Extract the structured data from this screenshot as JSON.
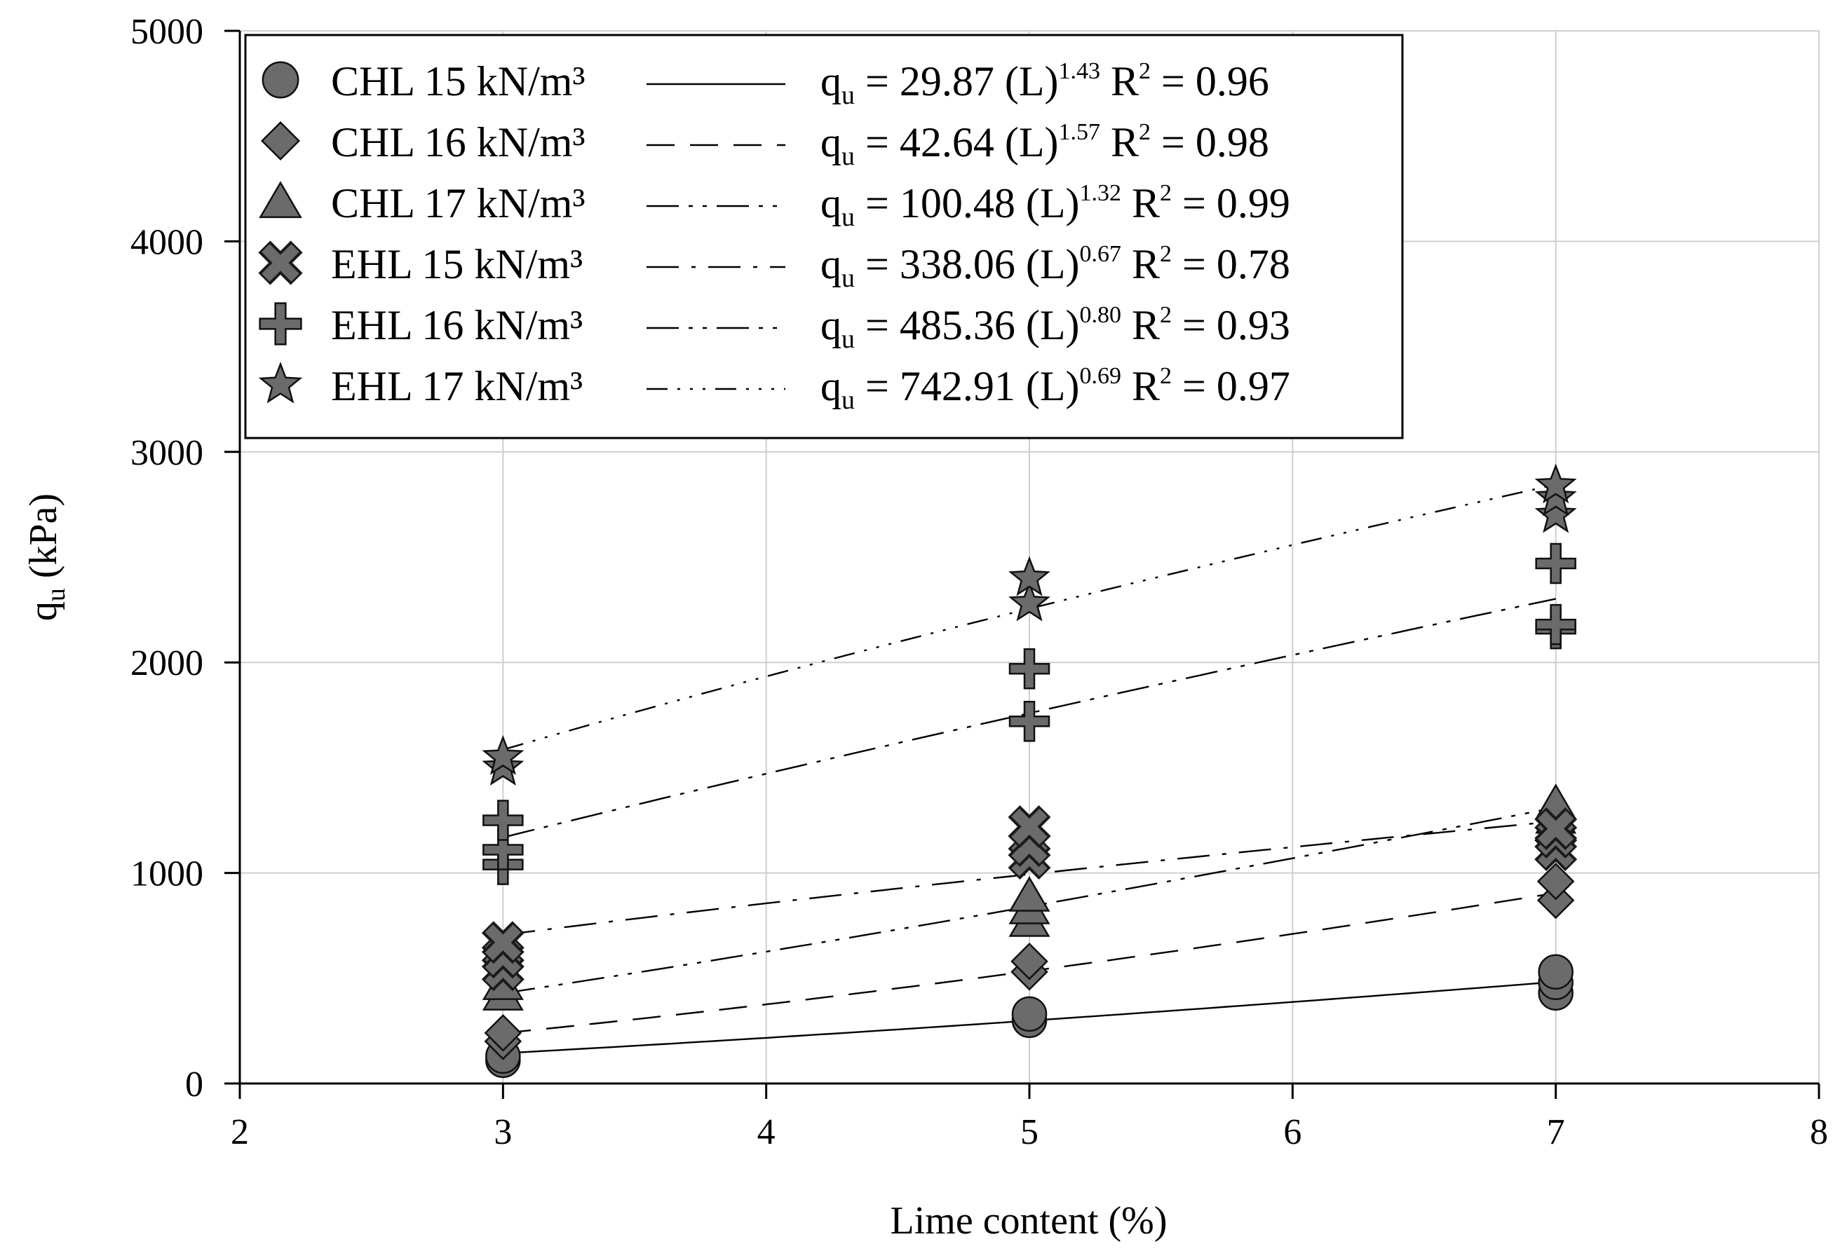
{
  "chart_data": {
    "type": "scatter",
    "xlabel": "Lime content (%)",
    "ylabel": "q",
    "ylabel_sub": "u",
    "ylabel_unit": "(kPa)",
    "xlim": [
      2,
      8
    ],
    "ylim": [
      0,
      5000
    ],
    "x_ticks": [
      2,
      3,
      4,
      5,
      6,
      7,
      8
    ],
    "y_ticks": [
      0,
      1000,
      2000,
      3000,
      4000,
      5000
    ],
    "x_tick_labels": [
      "2",
      "3",
      "4",
      "5",
      "6",
      "7",
      "8"
    ],
    "y_tick_labels": [
      "0",
      "1000",
      "2000",
      "3000",
      "4000",
      "5000"
    ],
    "grid": true,
    "legend_position": "top-left",
    "marker_color": "#6b6b6b",
    "series": [
      {
        "name": "CHL 15 kN/m³",
        "marker": "circle",
        "line_style": "solid",
        "fit": {
          "coef": 29.87,
          "exp": 1.43,
          "r2": "0.96",
          "coef_text": "29.87",
          "exp_text": "1.43"
        },
        "points": [
          [
            3,
            110
          ],
          [
            3,
            130
          ],
          [
            5,
            300
          ],
          [
            5,
            330
          ],
          [
            7,
            430
          ],
          [
            7,
            480
          ],
          [
            7,
            530
          ]
        ]
      },
      {
        "name": "CHL 16 kN/m³",
        "marker": "diamond",
        "line_style": "dashed",
        "fit": {
          "coef": 42.64,
          "exp": 1.57,
          "r2": "0.98",
          "coef_text": "42.64",
          "exp_text": "1.57"
        },
        "points": [
          [
            3,
            200
          ],
          [
            3,
            240
          ],
          [
            5,
            530
          ],
          [
            5,
            580
          ],
          [
            7,
            870
          ],
          [
            7,
            960
          ]
        ]
      },
      {
        "name": "CHL 17 kN/m³",
        "marker": "triangle",
        "line_style": "dash-dot-dot-long",
        "fit": {
          "coef": 100.48,
          "exp": 1.32,
          "r2": "0.99",
          "coef_text": "100.48",
          "exp_text": "1.32"
        },
        "points": [
          [
            3,
            420
          ],
          [
            3,
            470
          ],
          [
            5,
            770
          ],
          [
            5,
            830
          ],
          [
            5,
            890
          ],
          [
            7,
            1260
          ],
          [
            7,
            1330
          ]
        ]
      },
      {
        "name": "EHL 15 kN/m³",
        "marker": "cross-x",
        "line_style": "dash-dot",
        "fit": {
          "coef": 338.06,
          "exp": 0.67,
          "r2": "0.78",
          "coef_text": "338.06",
          "exp_text": "0.67"
        },
        "points": [
          [
            3,
            540
          ],
          [
            3,
            600
          ],
          [
            3,
            670
          ],
          [
            5,
            1070
          ],
          [
            5,
            1130
          ],
          [
            5,
            1220
          ],
          [
            7,
            1110
          ],
          [
            7,
            1170
          ],
          [
            7,
            1210
          ]
        ]
      },
      {
        "name": "EHL 16 kN/m³",
        "marker": "plus",
        "line_style": "dash-dot-dot",
        "fit": {
          "coef": 485.36,
          "exp": 0.8,
          "r2": "0.93",
          "coef_text": "485.36",
          "exp_text": "0.80"
        },
        "points": [
          [
            3,
            1040
          ],
          [
            3,
            1110
          ],
          [
            3,
            1250
          ],
          [
            5,
            1720
          ],
          [
            5,
            1970
          ],
          [
            7,
            2160
          ],
          [
            7,
            2180
          ],
          [
            7,
            2470
          ]
        ]
      },
      {
        "name": "EHL 17 kN/m³",
        "marker": "star",
        "line_style": "dash-dot-dot-dot",
        "fit": {
          "coef": 742.91,
          "exp": 0.69,
          "r2": "0.97",
          "coef_text": "742.91",
          "exp_text": "0.69"
        },
        "points": [
          [
            3,
            1500
          ],
          [
            3,
            1550
          ],
          [
            5,
            2280
          ],
          [
            5,
            2400
          ],
          [
            7,
            2700
          ],
          [
            7,
            2780
          ],
          [
            7,
            2840
          ]
        ]
      }
    ],
    "equation_var": "q",
    "equation_sub": "u",
    "equation_mid": " (L)",
    "r2_label": "R",
    "r2_sup": "2"
  }
}
